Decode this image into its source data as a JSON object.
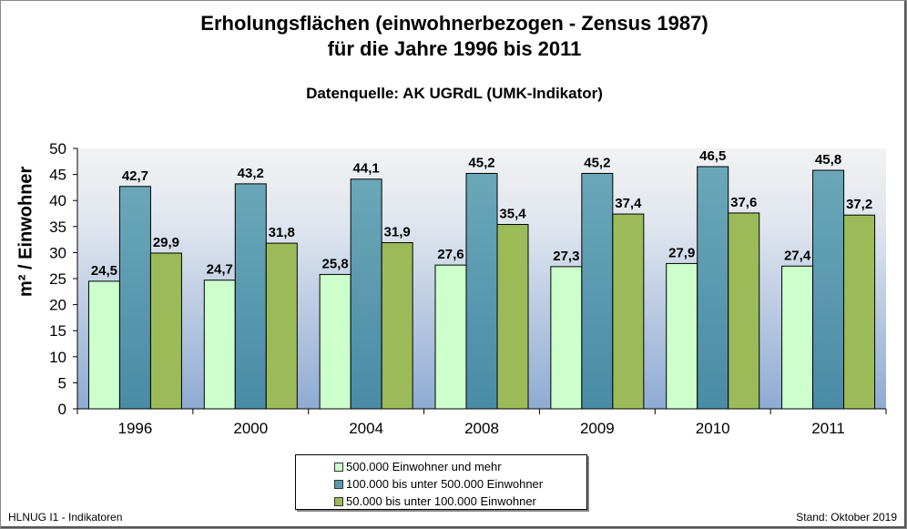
{
  "chart_data": {
    "type": "bar",
    "title_line1": "Erholungsflächen (einwohnerbezogen - Zensus 1987)",
    "title_line2": "für die Jahre 1996 bis 2011",
    "subtitle": "Datenquelle: AK UGRdL (UMK-Indikator)",
    "ylabel": "m² / Einwohner",
    "xlabel": "",
    "ylim": [
      0,
      50
    ],
    "yticks": [
      0,
      5,
      10,
      15,
      20,
      25,
      30,
      35,
      40,
      45,
      50
    ],
    "categories": [
      "1996",
      "2000",
      "2004",
      "2008",
      "2009",
      "2010",
      "2011"
    ],
    "series": [
      {
        "name": "500.000 Einwohner und mehr",
        "color": "#ccffcc",
        "values": [
          24.5,
          24.7,
          25.8,
          27.6,
          27.3,
          27.9,
          27.4
        ],
        "labels": [
          "24,5",
          "24,7",
          "25,8",
          "27,6",
          "27,3",
          "27,9",
          "27,4"
        ]
      },
      {
        "name": "100.000 bis unter 500.000 Einwohner",
        "color": "#5b9bb0",
        "values": [
          42.7,
          43.2,
          44.1,
          45.2,
          45.2,
          46.5,
          45.8
        ],
        "labels": [
          "42,7",
          "43,2",
          "44,1",
          "45,2",
          "45,2",
          "46,5",
          "45,8"
        ]
      },
      {
        "name": "50.000 bis unter 100.000 Einwohner",
        "color": "#9bbb59",
        "values": [
          29.9,
          31.8,
          31.9,
          35.4,
          37.4,
          37.6,
          37.2
        ],
        "labels": [
          "29,9",
          "31,8",
          "31,9",
          "35,4",
          "37,4",
          "37,6",
          "37,2"
        ]
      }
    ],
    "legend_position": "bottom",
    "grid": false,
    "background": "gradient light gray to blue"
  },
  "footer": {
    "left": "HLNUG I1 - Indikatoren",
    "right": "Stand: Oktober 2019"
  }
}
